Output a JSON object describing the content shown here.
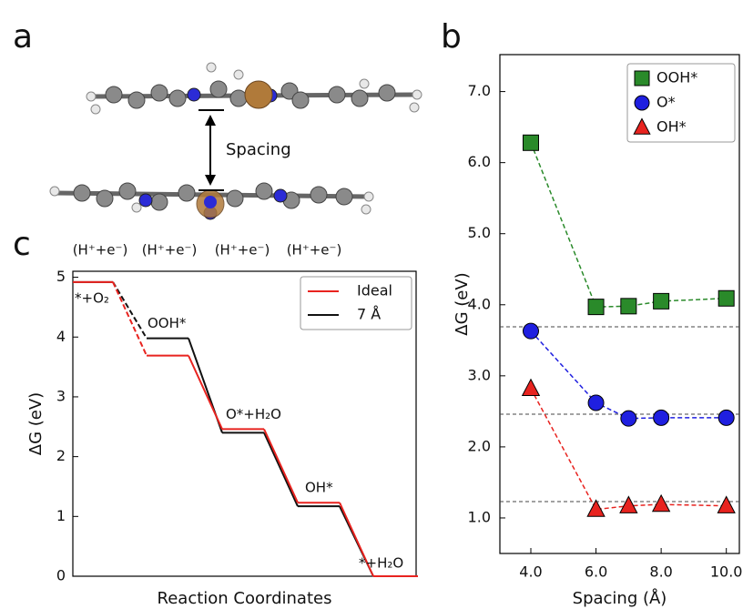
{
  "panel_a": {
    "panel_label": "a",
    "annotation": "Spacing"
  },
  "chart_data": [
    {
      "type": "scatter",
      "panel_label": "b",
      "xlabel": "Spacing (Å)",
      "ylabel": "ΔG (eV)",
      "x": [
        4,
        6,
        7,
        8,
        10
      ],
      "series": [
        {
          "name": "OOH*",
          "color": "#2a8a2a",
          "marker": "square",
          "values": [
            6.28,
            3.97,
            3.98,
            4.05,
            4.09
          ]
        },
        {
          "name": "O*",
          "color": "#1f1fe0",
          "marker": "circle",
          "values": [
            3.63,
            2.62,
            2.4,
            2.41,
            2.41
          ]
        },
        {
          "name": "OH*",
          "color": "#e8231f",
          "marker": "triangle",
          "values": [
            2.82,
            1.12,
            1.17,
            1.19,
            1.17
          ]
        }
      ],
      "hlines": [
        3.69,
        2.46,
        1.23
      ],
      "xlim": [
        3.05,
        10.4
      ],
      "ylim": [
        0.5,
        7.52
      ],
      "xticks": [
        {
          "value": 4,
          "label": "4.0"
        },
        {
          "value": 6,
          "label": "6.0"
        },
        {
          "value": 8,
          "label": "8.0"
        },
        {
          "value": 10,
          "label": "10.0"
        }
      ],
      "yticks": [
        {
          "value": 1,
          "label": "1.0"
        },
        {
          "value": 2,
          "label": "2.0"
        },
        {
          "value": 3,
          "label": "3.0"
        },
        {
          "value": 4,
          "label": "4.0"
        },
        {
          "value": 5,
          "label": "5.0"
        },
        {
          "value": 6,
          "label": "6.0"
        },
        {
          "value": 7,
          "label": "7.0"
        }
      ],
      "legend": "upper right"
    },
    {
      "type": "step",
      "panel_label": "c",
      "xlabel": "Reaction Coordinates",
      "ylabel": "ΔG (eV)",
      "step_labels": [
        "(H⁺+e⁻)",
        "(H⁺+e⁻)",
        "(H⁺+e⁻)",
        "(H⁺+e⁻)"
      ],
      "annotations": [
        "*+O₂",
        "OOH*",
        "O*+H₂O",
        "OH*",
        "*+H₂O"
      ],
      "series": [
        {
          "name": "Ideal",
          "color": "#e8231f",
          "values": [
            4.92,
            3.69,
            2.46,
            1.23,
            0
          ]
        },
        {
          "name": "7 Å",
          "color": "#111111",
          "values": [
            4.92,
            3.98,
            2.4,
            1.17,
            0
          ]
        }
      ],
      "ylim": [
        0,
        5.1
      ],
      "yticks": [
        0,
        1,
        2,
        3,
        4,
        5
      ],
      "legend": "upper right"
    }
  ]
}
